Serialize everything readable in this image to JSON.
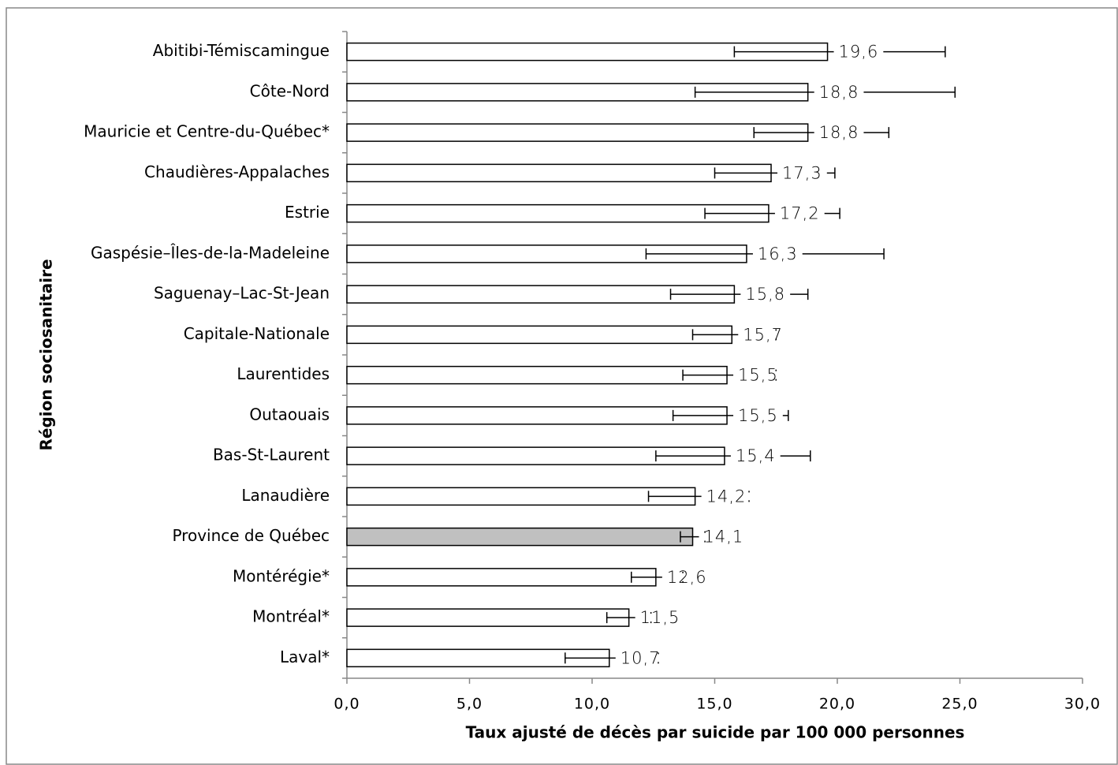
{
  "chart_data": {
    "type": "bar",
    "orientation": "horizontal",
    "x_label": "Taux ajusté de décès par suicide par 100 000 personnes",
    "y_label": "Région sociosanitaire",
    "categories": [
      "Abitibi-Témiscamingue",
      "Côte-Nord",
      "Mauricie et Centre-du-Québec*",
      "Chaudières-Appalaches",
      "Estrie",
      "Gaspésie–Îles-de-la-Madeleine",
      "Saguenay–Lac-St-Jean",
      "Capitale-Nationale",
      "Laurentides",
      "Outaouais",
      "Bas-St-Laurent",
      "Lanaudière",
      "Province de Québec",
      "Montérégie*",
      "Montréal*",
      "Laval*"
    ],
    "series": [
      {
        "values": [
          19.6,
          18.8,
          18.8,
          17.3,
          17.2,
          16.3,
          15.8,
          15.7,
          15.5,
          15.5,
          15.4,
          14.2,
          14.1,
          12.6,
          11.5,
          10.7
        ],
        "value_labels": [
          "19,6",
          "18,8",
          "18,8",
          "17,3",
          "17,2",
          "16,3",
          "15,8",
          "15,7",
          "15,5",
          "15,5",
          "15,4",
          "14,2",
          "14,1",
          "12,6",
          "11,5",
          "10,7"
        ],
        "lower": [
          15.8,
          14.2,
          16.6,
          15.0,
          14.6,
          12.2,
          13.2,
          14.1,
          13.7,
          13.3,
          12.6,
          12.3,
          13.6,
          11.6,
          10.6,
          8.9
        ],
        "upper": [
          24.4,
          24.8,
          22.1,
          19.9,
          20.1,
          21.9,
          18.8,
          17.5,
          17.5,
          18.0,
          18.9,
          16.4,
          14.6,
          13.7,
          12.4,
          12.7
        ],
        "colors": [
          "#ffffff",
          "#ffffff",
          "#ffffff",
          "#ffffff",
          "#ffffff",
          "#ffffff",
          "#ffffff",
          "#ffffff",
          "#ffffff",
          "#ffffff",
          "#ffffff",
          "#ffffff",
          "#c0c0c0",
          "#ffffff",
          "#ffffff",
          "#ffffff"
        ]
      }
    ],
    "xlim": [
      0,
      30
    ],
    "xticks": [
      {
        "value": 0,
        "label": "0,0"
      },
      {
        "value": 5,
        "label": "5,0"
      },
      {
        "value": 10,
        "label": "10,0"
      },
      {
        "value": 15,
        "label": "15,0"
      },
      {
        "value": 20,
        "label": "20,0"
      },
      {
        "value": 25,
        "label": "25,0"
      },
      {
        "value": 30,
        "label": "30,0"
      }
    ],
    "grid": false
  }
}
